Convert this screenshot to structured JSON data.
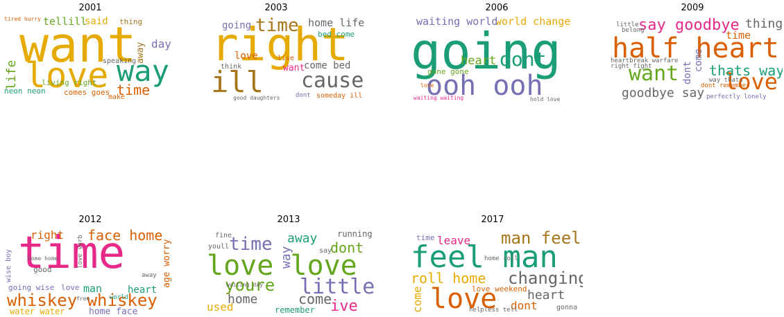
{
  "palette": {
    "orange": "#d95f02",
    "teal": "#1b9e77",
    "purple": "#7570b3",
    "pink": "#e7298a",
    "green": "#66a61e",
    "gold": "#e6ab02",
    "brown": "#a6761d",
    "gray": "#666666"
  },
  "panels": [
    {
      "year": "2001",
      "words": [
        {
          "t": "want",
          "c": "gold"
        },
        {
          "t": "love",
          "c": "gold"
        },
        {
          "t": "way",
          "c": "teal"
        },
        {
          "t": "time",
          "c": "orange"
        },
        {
          "t": "life",
          "c": "green"
        },
        {
          "t": "tellill",
          "c": "green"
        },
        {
          "t": "said",
          "c": "gold"
        },
        {
          "t": "day",
          "c": "purple"
        },
        {
          "t": "away",
          "c": "brown"
        },
        {
          "t": "thing",
          "c": "brown"
        },
        {
          "t": "living right",
          "c": "green"
        },
        {
          "t": "comes goes",
          "c": "orange"
        },
        {
          "t": "neon neon",
          "c": "teal"
        },
        {
          "t": "make",
          "c": "orange"
        },
        {
          "t": "speaking",
          "c": "gray"
        },
        {
          "t": "tired hurry",
          "c": "orange"
        }
      ]
    },
    {
      "year": "2003",
      "words": [
        {
          "t": "right",
          "c": "gold"
        },
        {
          "t": "time",
          "c": "brown"
        },
        {
          "t": "ill",
          "c": "brown"
        },
        {
          "t": "cause",
          "c": "gray"
        },
        {
          "t": "home life",
          "c": "gray"
        },
        {
          "t": "going",
          "c": "purple"
        },
        {
          "t": "love",
          "c": "orange"
        },
        {
          "t": "want",
          "c": "pink"
        },
        {
          "t": "come bed",
          "c": "gray"
        },
        {
          "t": "bed come",
          "c": "teal"
        },
        {
          "t": "someday ill",
          "c": "orange"
        },
        {
          "t": "good daughters",
          "c": "gray"
        },
        {
          "t": "dont",
          "c": "purple"
        },
        {
          "t": "think",
          "c": "gray"
        },
        {
          "t": "live",
          "c": "orange"
        }
      ]
    },
    {
      "year": "2006",
      "words": [
        {
          "t": "going",
          "c": "teal"
        },
        {
          "t": "ooh ooh",
          "c": "purple"
        },
        {
          "t": "dont",
          "c": "teal"
        },
        {
          "t": "heart",
          "c": "green"
        },
        {
          "t": "world change",
          "c": "gold"
        },
        {
          "t": "waiting world",
          "c": "purple"
        },
        {
          "t": "gone gone",
          "c": "green"
        },
        {
          "t": "waiting waiting",
          "c": "pink"
        },
        {
          "t": "hold love",
          "c": "gray"
        },
        {
          "t": "love",
          "c": "orange"
        }
      ]
    },
    {
      "year": "2009",
      "words": [
        {
          "t": "half heart",
          "c": "orange"
        },
        {
          "t": "say goodbye",
          "c": "pink"
        },
        {
          "t": "thing",
          "c": "gray"
        },
        {
          "t": "want",
          "c": "green"
        },
        {
          "t": "love",
          "c": "orange"
        },
        {
          "t": "thats way",
          "c": "teal"
        },
        {
          "t": "goodbye say",
          "c": "gray"
        },
        {
          "t": "time",
          "c": "orange"
        },
        {
          "t": "dont",
          "c": "purple"
        },
        {
          "t": "come",
          "c": "purple"
        },
        {
          "t": "heartbreak warfare",
          "c": "gray"
        },
        {
          "t": "dont remember",
          "c": "orange"
        },
        {
          "t": "perfectly lonely",
          "c": "purple"
        },
        {
          "t": "right fight",
          "c": "gray"
        },
        {
          "t": "way thats",
          "c": "gray"
        },
        {
          "t": "belong",
          "c": "gray"
        },
        {
          "t": "little",
          "c": "gray"
        }
      ]
    },
    {
      "year": "2012",
      "words": [
        {
          "t": "time",
          "c": "pink"
        },
        {
          "t": "face home",
          "c": "orange"
        },
        {
          "t": "whiskey whiskey",
          "c": "orange"
        },
        {
          "t": "right",
          "c": "orange"
        },
        {
          "t": "water water",
          "c": "gold"
        },
        {
          "t": "home face",
          "c": "purple"
        },
        {
          "t": "man",
          "c": "teal"
        },
        {
          "t": "heart",
          "c": "teal"
        },
        {
          "t": "love",
          "c": "purple"
        },
        {
          "t": "age worry",
          "c": "orange"
        },
        {
          "t": "going wise",
          "c": "purple"
        },
        {
          "t": "good",
          "c": "gray"
        },
        {
          "t": "wise boy",
          "c": "purple"
        },
        {
          "t": "love verb",
          "c": "gray"
        },
        {
          "t": "world",
          "c": "teal"
        },
        {
          "t": "away",
          "c": "gray"
        },
        {
          "t": "home home",
          "c": "gray"
        },
        {
          "t": "free",
          "c": "gray"
        }
      ]
    },
    {
      "year": "2013",
      "words": [
        {
          "t": "love love",
          "c": "green"
        },
        {
          "t": "little",
          "c": "purple"
        },
        {
          "t": "youre",
          "c": "green"
        },
        {
          "t": "time",
          "c": "purple"
        },
        {
          "t": "dont",
          "c": "green"
        },
        {
          "t": "home",
          "c": "gray"
        },
        {
          "t": "come",
          "c": "gray"
        },
        {
          "t": "ive",
          "c": "pink"
        },
        {
          "t": "away",
          "c": "teal"
        },
        {
          "t": "used",
          "c": "gold"
        },
        {
          "t": "way",
          "c": "purple"
        },
        {
          "t": "running",
          "c": "gray"
        },
        {
          "t": "remember",
          "c": "teal"
        },
        {
          "t": "youll",
          "c": "gray"
        },
        {
          "t": "fine",
          "c": "gray"
        },
        {
          "t": "say",
          "c": "gray"
        },
        {
          "t": "waiting day",
          "c": "gray"
        }
      ]
    },
    {
      "year": "2017",
      "words": [
        {
          "t": "feel man",
          "c": "teal"
        },
        {
          "t": "love",
          "c": "orange"
        },
        {
          "t": "changing",
          "c": "gray"
        },
        {
          "t": "man feel",
          "c": "brown"
        },
        {
          "t": "roll home",
          "c": "gold"
        },
        {
          "t": "heart",
          "c": "gray"
        },
        {
          "t": "dont",
          "c": "orange"
        },
        {
          "t": "come",
          "c": "gold"
        },
        {
          "t": "leave",
          "c": "pink"
        },
        {
          "t": "love weekend",
          "c": "orange"
        },
        {
          "t": "time",
          "c": "purple"
        },
        {
          "t": "gonna",
          "c": "gray"
        },
        {
          "t": "home roll",
          "c": "gray"
        },
        {
          "t": "helpless tell",
          "c": "gray"
        }
      ]
    }
  ]
}
